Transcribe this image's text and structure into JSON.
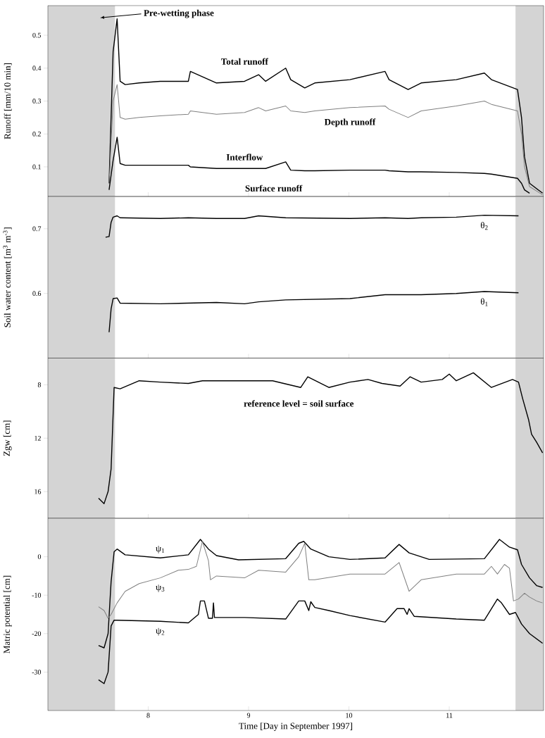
{
  "chart_data": [
    {
      "type": "line",
      "ylabel": "Runoff [mm/10 min]",
      "xlim": [
        7.0,
        11.94
      ],
      "xticks": [
        8,
        9,
        10,
        11
      ],
      "ylim": [
        0.01,
        0.59
      ],
      "yticks": [
        0.1,
        0.2,
        0.3,
        0.4,
        0.5
      ],
      "tick_labels": "y",
      "bands": [
        {
          "axis": "x",
          "from": 7.0,
          "to": 7.67,
          "color": "#d4d4d4"
        },
        {
          "axis": "x",
          "from": 11.66,
          "to": 11.94,
          "color": "#d4d4d4"
        }
      ],
      "annotations": [
        "Pre-wetting phase",
        "Surface runoff"
      ],
      "series": [
        {
          "name": "Total runoff",
          "color": "#000000",
          "x": [
            7.61,
            7.65,
            7.69,
            7.72,
            7.77,
            7.91,
            8.12,
            8.4,
            8.42,
            8.68,
            8.96,
            9.1,
            9.17,
            9.37,
            9.42,
            9.56,
            9.66,
            10.01,
            10.36,
            10.4,
            10.59,
            10.72,
            11.07,
            11.35,
            11.42,
            11.68,
            11.72,
            11.75,
            11.8,
            11.93
          ],
          "values": [
            0.05,
            0.45,
            0.55,
            0.36,
            0.35,
            0.355,
            0.36,
            0.36,
            0.39,
            0.355,
            0.36,
            0.38,
            0.36,
            0.4,
            0.365,
            0.34,
            0.355,
            0.365,
            0.39,
            0.365,
            0.335,
            0.355,
            0.365,
            0.385,
            0.365,
            0.335,
            0.25,
            0.13,
            0.05,
            0.02
          ]
        },
        {
          "name": "Depth runoff",
          "color": "#808080",
          "x": [
            7.61,
            7.65,
            7.69,
            7.72,
            7.77,
            7.91,
            8.12,
            8.4,
            8.42,
            8.68,
            8.96,
            9.1,
            9.17,
            9.37,
            9.42,
            9.56,
            9.66,
            10.01,
            10.36,
            10.4,
            10.59,
            10.72,
            11.07,
            11.35,
            11.42,
            11.68,
            11.72,
            11.75,
            11.8,
            11.93
          ],
          "values": [
            0.05,
            0.3,
            0.35,
            0.25,
            0.245,
            0.25,
            0.255,
            0.26,
            0.27,
            0.26,
            0.265,
            0.28,
            0.27,
            0.285,
            0.27,
            0.265,
            0.27,
            0.28,
            0.285,
            0.275,
            0.25,
            0.27,
            0.285,
            0.3,
            0.29,
            0.27,
            0.2,
            0.1,
            0.04,
            0.015
          ]
        },
        {
          "name": "Interflow",
          "color": "#000000",
          "x": [
            7.61,
            7.65,
            7.69,
            7.72,
            7.77,
            7.91,
            8.12,
            8.4,
            8.42,
            8.68,
            8.96,
            9.1,
            9.17,
            9.37,
            9.42,
            9.56,
            9.66,
            10.01,
            10.36,
            10.4,
            10.59,
            10.72,
            11.07,
            11.35,
            11.42,
            11.68,
            11.72,
            11.75,
            11.8
          ],
          "values": [
            0.03,
            0.12,
            0.19,
            0.11,
            0.105,
            0.105,
            0.105,
            0.105,
            0.1,
            0.095,
            0.095,
            0.095,
            0.095,
            0.115,
            0.09,
            0.088,
            0.088,
            0.09,
            0.09,
            0.088,
            0.085,
            0.085,
            0.083,
            0.08,
            0.078,
            0.065,
            0.05,
            0.03,
            0.02
          ]
        }
      ]
    },
    {
      "type": "line",
      "ylabel": "Soil water content [m$^{3}$ m$^{-3}$]",
      "xlim": [
        7.0,
        11.94
      ],
      "xticks": [
        8,
        9,
        10,
        11
      ],
      "ylim": [
        0.5,
        0.75
      ],
      "yticks": [
        0.6,
        0.7
      ],
      "tick_labels": "y",
      "bands": [
        {
          "axis": "x",
          "from": 7.0,
          "to": 7.67,
          "color": "#d4d4d4"
        },
        {
          "axis": "x",
          "from": 11.66,
          "to": 11.94,
          "color": "#d4d4d4"
        }
      ],
      "series": [
        {
          "name": "θ$_{2}$",
          "color": "#000000",
          "x": [
            7.575,
            7.61,
            7.63,
            7.65,
            7.69,
            7.72,
            8.12,
            8.4,
            8.68,
            8.96,
            9.1,
            9.37,
            10.01,
            10.36,
            10.59,
            10.72,
            11.07,
            11.35,
            11.69
          ],
          "values": [
            0.687,
            0.688,
            0.71,
            0.718,
            0.72,
            0.717,
            0.716,
            0.717,
            0.716,
            0.716,
            0.72,
            0.717,
            0.716,
            0.717,
            0.716,
            0.717,
            0.718,
            0.721,
            0.72
          ]
        },
        {
          "name": "θ$_{1}$",
          "color": "#000000",
          "x": [
            7.61,
            7.63,
            7.65,
            7.69,
            7.72,
            8.12,
            8.4,
            8.68,
            8.96,
            9.1,
            9.37,
            10.01,
            10.36,
            10.59,
            10.72,
            11.07,
            11.35,
            11.69
          ],
          "values": [
            0.54,
            0.576,
            0.592,
            0.593,
            0.585,
            0.584,
            0.585,
            0.586,
            0.584,
            0.587,
            0.59,
            0.592,
            0.598,
            0.598,
            0.598,
            0.6,
            0.603,
            0.601
          ]
        }
      ]
    },
    {
      "type": "line",
      "ylabel": "Zgw [cm]",
      "xlim": [
        7.0,
        11.94
      ],
      "xticks": [
        8,
        9,
        10,
        11
      ],
      "ylim": [
        18,
        6
      ],
      "yticks": [
        8,
        12,
        16
      ],
      "tick_labels": "y",
      "bands": [
        {
          "axis": "x",
          "from": 7.0,
          "to": 7.67,
          "color": "#d4d4d4"
        },
        {
          "axis": "x",
          "from": 11.66,
          "to": 11.94,
          "color": "#d4d4d4"
        }
      ],
      "annotations": [
        "reference level = soil surface"
      ],
      "series": [
        {
          "color": "#000000",
          "x": [
            7.505,
            7.56,
            7.6,
            7.63,
            7.66,
            7.72,
            7.91,
            8.12,
            8.4,
            8.54,
            8.96,
            9.24,
            9.35,
            9.52,
            9.59,
            9.8,
            10.01,
            10.19,
            10.33,
            10.51,
            10.61,
            10.72,
            10.93,
            11.0,
            11.07,
            11.24,
            11.42,
            11.63,
            11.69,
            11.73,
            11.79,
            11.82,
            11.87,
            11.93
          ],
          "values": [
            16.5,
            16.9,
            16.0,
            14.3,
            8.2,
            8.3,
            7.7,
            7.8,
            7.9,
            7.7,
            7.7,
            7.7,
            7.9,
            8.2,
            7.4,
            8.2,
            7.8,
            7.6,
            7.9,
            8.1,
            7.4,
            7.8,
            7.6,
            7.2,
            7.7,
            7.1,
            8.2,
            7.6,
            7.8,
            9.0,
            10.6,
            11.7,
            12.3,
            13.1
          ]
        }
      ]
    },
    {
      "type": "line",
      "ylabel": "Matric potential [cm]",
      "xlabel": "Time [Day in September 1997]",
      "xlim": [
        7.0,
        11.94
      ],
      "xticks": [
        8,
        9,
        10,
        11
      ],
      "ylim": [
        -40,
        10
      ],
      "yticks": [
        -30,
        -20,
        -10,
        0
      ],
      "bands": [
        {
          "axis": "x",
          "from": 7.0,
          "to": 7.67,
          "color": "#d4d4d4"
        },
        {
          "axis": "x",
          "from": 11.66,
          "to": 11.94,
          "color": "#d4d4d4"
        }
      ],
      "series": [
        {
          "name": "ψ$_{1}$",
          "color": "#000000",
          "x": [
            7.505,
            7.56,
            7.6,
            7.63,
            7.66,
            7.69,
            7.77,
            8.12,
            8.4,
            8.52,
            8.6,
            8.68,
            8.9,
            9.37,
            9.5,
            9.55,
            9.62,
            9.8,
            10.01,
            10.36,
            10.5,
            10.6,
            10.8,
            11.35,
            11.5,
            11.6,
            11.68,
            11.72,
            11.8,
            11.87,
            11.93
          ],
          "values": [
            -23.1,
            -23.7,
            -20,
            -6.5,
            1.3,
            2.0,
            0.5,
            -0.3,
            0.5,
            4.5,
            2.0,
            0.3,
            -0.8,
            -0.5,
            3.5,
            4,
            2.0,
            0,
            -0.7,
            -0.3,
            3.2,
            1,
            -0.7,
            -0.5,
            4.5,
            2.5,
            1.8,
            -2,
            -5.5,
            -7.5,
            -8
          ]
        },
        {
          "name": "ψ$_{3}$",
          "color": "#808080",
          "x": [
            7.505,
            7.56,
            7.6,
            7.63,
            7.69,
            7.77,
            7.91,
            8.12,
            8.3,
            8.4,
            8.48,
            8.54,
            8.6,
            8.62,
            8.68,
            8.96,
            9.1,
            9.37,
            9.5,
            9.56,
            9.6,
            9.66,
            10.01,
            10.36,
            10.5,
            10.6,
            10.72,
            11.07,
            11.35,
            11.42,
            11.48,
            11.55,
            11.6,
            11.64,
            11.69,
            11.75,
            11.8,
            11.87,
            11.93
          ],
          "values": [
            -13,
            -14,
            -16,
            -15,
            -12,
            -9,
            -7,
            -5.5,
            -3.5,
            -3.3,
            -2.5,
            4,
            -1,
            -6,
            -5,
            -5.5,
            -3.5,
            -4,
            0,
            3.5,
            -6,
            -6,
            -4.5,
            -4.5,
            -1.5,
            -9,
            -6,
            -4.5,
            -4.5,
            -2.5,
            -4.5,
            -2,
            -3,
            -11.5,
            -11,
            -9.5,
            -10.5,
            -11.5,
            -12
          ]
        },
        {
          "name": "ψ$_{2}$",
          "color": "#000000",
          "x": [
            7.505,
            7.56,
            7.6,
            7.63,
            7.66,
            7.69,
            8.12,
            8.4,
            8.5,
            8.52,
            8.56,
            8.6,
            8.64,
            8.65,
            8.66,
            8.96,
            9.37,
            9.5,
            9.56,
            9.6,
            9.62,
            9.66,
            9.8,
            10.01,
            10.36,
            10.48,
            10.55,
            10.58,
            10.6,
            10.65,
            11.07,
            11.35,
            11.48,
            11.52,
            11.6,
            11.66,
            11.72,
            11.8,
            11.93
          ],
          "values": [
            -32,
            -33,
            -30,
            -18,
            -16.5,
            -16.5,
            -16.8,
            -17.2,
            -15,
            -11.5,
            -11.5,
            -16,
            -16,
            -12,
            -15.8,
            -15.8,
            -16.2,
            -11.5,
            -11.5,
            -14,
            -11.7,
            -13.2,
            -14,
            -15.3,
            -17,
            -13.5,
            -13.5,
            -15,
            -13.5,
            -15.5,
            -16.2,
            -16.5,
            -11,
            -12,
            -15,
            -14.5,
            -17.5,
            -20,
            -22.5
          ]
        }
      ]
    }
  ]
}
